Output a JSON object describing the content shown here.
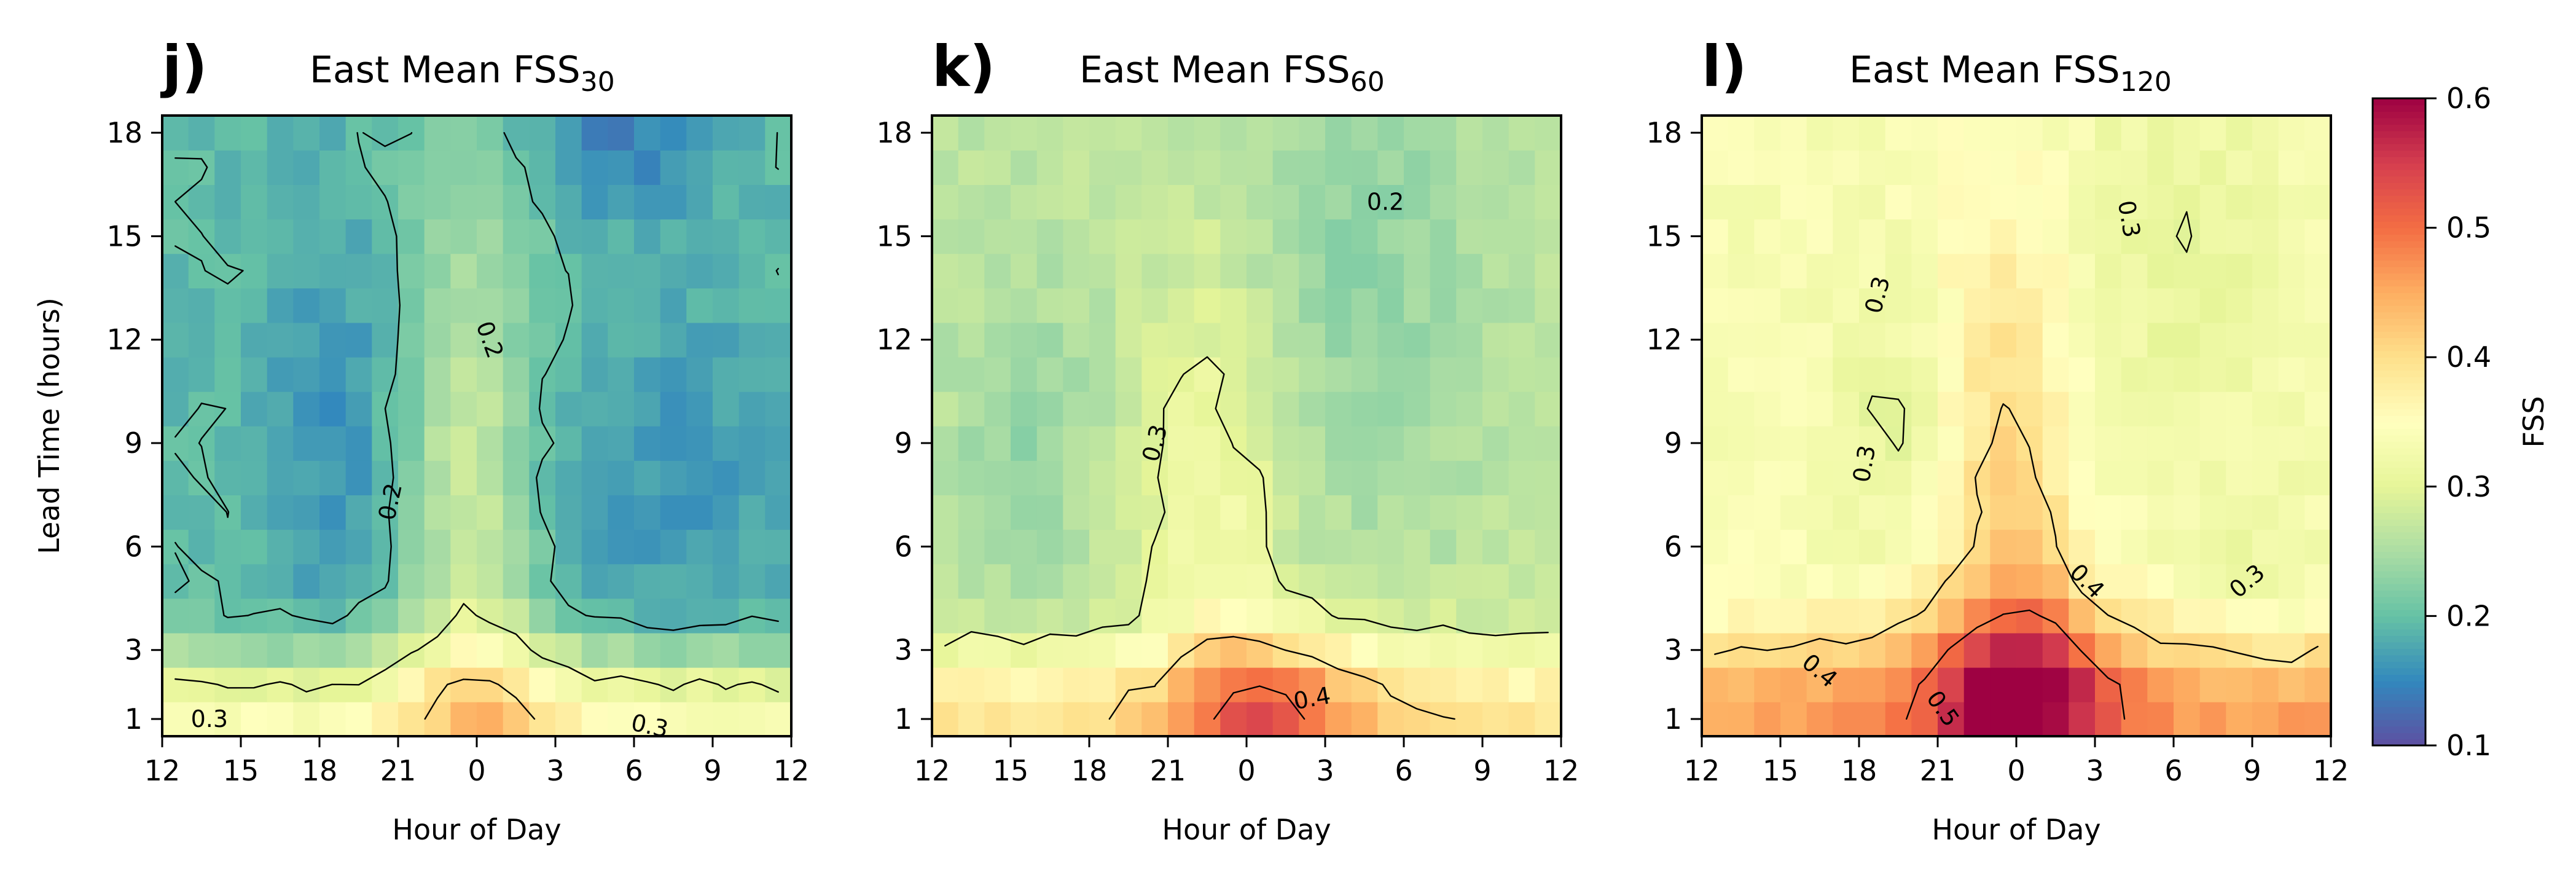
{
  "colors": {
    "colormap": "Spectral_r",
    "axis": "#000000",
    "contour": "#000000"
  },
  "chart_data": [
    {
      "type": "heatmap",
      "panel_label": "j)",
      "title": "East Mean FSS",
      "title_subscript": "30",
      "xlabel": "Hour of Day",
      "ylabel": "Lead Time (hours)",
      "x_ticks": [
        "12",
        "15",
        "18",
        "21",
        "0",
        "3",
        "6",
        "9",
        "12"
      ],
      "y_ticks": [
        "1",
        "3",
        "6",
        "9",
        "12",
        "15",
        "18"
      ],
      "xlim": [
        12,
        36
      ],
      "ylim": [
        0.5,
        18.5
      ],
      "contour_levels": [
        0.2,
        0.3,
        0.4,
        0.5
      ],
      "contour_labels": [
        {
          "text": "0.2",
          "x": 20.7,
          "y": 7.3,
          "rot": -78
        },
        {
          "text": "0.2",
          "x": 24.5,
          "y": 12.0,
          "rot": 70
        },
        {
          "text": "0.3",
          "x": 13.8,
          "y": 1.0,
          "rot": 0
        },
        {
          "text": "0.3",
          "x": 30.6,
          "y": 0.8,
          "rot": 12
        }
      ],
      "field": {
        "base": 0.195,
        "terms": [
          {
            "a": 0.075,
            "cx": 23.8,
            "sx": 1.6,
            "cy": 6,
            "sy": 5
          },
          {
            "a": 0.035,
            "cx": 23.5,
            "sx": 2.2,
            "cy": 14,
            "sy": 5
          },
          {
            "a": -0.035,
            "cx": 18.5,
            "sx": 2.0,
            "cy": 10,
            "sy": 5
          },
          {
            "a": -0.05,
            "cx": 29.2,
            "sx": 2.5,
            "cy": 17.8,
            "sy": 1.5
          },
          {
            "a": -0.03,
            "cx": 31,
            "sx": 4,
            "cy": 8,
            "sy": 4
          },
          {
            "a": 0.15,
            "cx": 24,
            "sx": 40,
            "cy": 1,
            "sy": 1.4
          },
          {
            "a": 0.06,
            "cx": 24.5,
            "sx": 2.5,
            "cy": 1.5,
            "sy": 1.8
          }
        ]
      },
      "colorbar": null
    },
    {
      "type": "heatmap",
      "panel_label": "k)",
      "title": "East Mean FSS",
      "title_subscript": "60",
      "xlabel": "Hour of Day",
      "ylabel": "",
      "x_ticks": [
        "12",
        "15",
        "18",
        "21",
        "0",
        "3",
        "6",
        "9",
        "12"
      ],
      "y_ticks": [
        "1",
        "3",
        "6",
        "9",
        "12",
        "15",
        "18"
      ],
      "xlim": [
        12,
        36
      ],
      "ylim": [
        0.5,
        18.5
      ],
      "contour_levels": [
        0.2,
        0.3,
        0.4,
        0.5
      ],
      "contour_labels": [
        {
          "text": "0.3",
          "x": 20.5,
          "y": 9.0,
          "rot": -75
        },
        {
          "text": "0.2",
          "x": 29.3,
          "y": 16.0,
          "rot": 0
        },
        {
          "text": "0.4",
          "x": 26.5,
          "y": 1.6,
          "rot": -10
        }
      ],
      "field": {
        "base": 0.265,
        "terms": [
          {
            "a": 0.06,
            "cx": 22.7,
            "sx": 1.8,
            "cy": 7,
            "sy": 5
          },
          {
            "a": -0.03,
            "cx": 15.5,
            "sx": 1.8,
            "cy": 9,
            "sy": 3
          },
          {
            "a": -0.035,
            "cx": 28.5,
            "sx": 3.0,
            "cy": 14,
            "sy": 5
          },
          {
            "a": 0.13,
            "cx": 24,
            "sx": 40,
            "cy": 1,
            "sy": 1.5
          },
          {
            "a": 0.12,
            "cx": 25.0,
            "sx": 2.5,
            "cy": 1.3,
            "sy": 1.8
          }
        ]
      },
      "colorbar": null
    },
    {
      "type": "heatmap",
      "panel_label": "l)",
      "title": "East Mean FSS",
      "title_subscript": "120",
      "xlabel": "Hour of Day",
      "ylabel": "",
      "x_ticks": [
        "12",
        "15",
        "18",
        "21",
        "0",
        "3",
        "6",
        "9",
        "12"
      ],
      "y_ticks": [
        "1",
        "3",
        "6",
        "9",
        "12",
        "15",
        "18"
      ],
      "xlim": [
        12,
        36
      ],
      "ylim": [
        0.5,
        18.5
      ],
      "contour_levels": [
        0.2,
        0.3,
        0.4,
        0.5
      ],
      "contour_labels": [
        {
          "text": "0.3",
          "x": 18.2,
          "y": 8.4,
          "rot": -80
        },
        {
          "text": "0.3",
          "x": 18.7,
          "y": 13.3,
          "rot": -75
        },
        {
          "text": "0.3",
          "x": 28.3,
          "y": 15.5,
          "rot": 80
        },
        {
          "text": "0.4",
          "x": 26.7,
          "y": 5.0,
          "rot": 45
        },
        {
          "text": "0.3",
          "x": 32.8,
          "y": 5.0,
          "rot": -40
        },
        {
          "text": "0.4",
          "x": 16.5,
          "y": 2.4,
          "rot": 40
        },
        {
          "text": "0.5",
          "x": 21.2,
          "y": 1.3,
          "rot": 55
        }
      ],
      "field": {
        "base": 0.335,
        "terms": [
          {
            "a": 0.075,
            "cx": 23.7,
            "sx": 1.8,
            "cy": 8,
            "sy": 6
          },
          {
            "a": -0.035,
            "cx": 19.5,
            "sx": 1.6,
            "cy": 9.5,
            "sy": 2.5
          },
          {
            "a": -0.03,
            "cx": 30.0,
            "sx": 3.0,
            "cy": 14.5,
            "sy": 4
          },
          {
            "a": -0.02,
            "cx": 33.0,
            "sx": 2.0,
            "cy": 5,
            "sy": 2
          },
          {
            "a": 0.13,
            "cx": 24,
            "sx": 40,
            "cy": 1.2,
            "sy": 1.6
          },
          {
            "a": 0.14,
            "cx": 24.2,
            "sx": 2.6,
            "cy": 1.8,
            "sy": 2.2
          }
        ]
      },
      "colorbar": {
        "label": "FSS",
        "ticks": [
          "0.1",
          "0.2",
          "0.3",
          "0.4",
          "0.5",
          "0.6"
        ],
        "vmin": 0.1,
        "vmax": 0.6
      }
    }
  ]
}
